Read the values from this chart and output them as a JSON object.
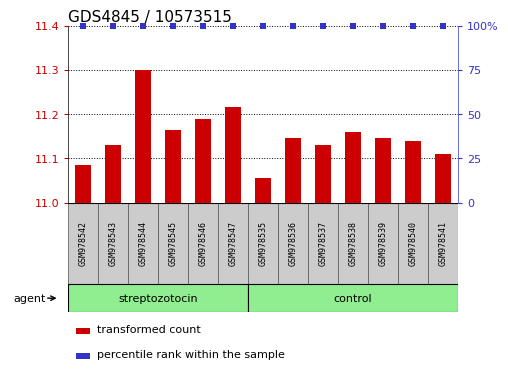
{
  "title": "GDS4845 / 10573515",
  "samples": [
    "GSM978542",
    "GSM978543",
    "GSM978544",
    "GSM978545",
    "GSM978546",
    "GSM978547",
    "GSM978535",
    "GSM978536",
    "GSM978537",
    "GSM978538",
    "GSM978539",
    "GSM978540",
    "GSM978541"
  ],
  "bar_values": [
    11.085,
    11.13,
    11.3,
    11.165,
    11.19,
    11.215,
    11.055,
    11.145,
    11.13,
    11.16,
    11.145,
    11.14,
    11.11
  ],
  "percentile_values": [
    100,
    100,
    100,
    100,
    100,
    100,
    100,
    100,
    100,
    100,
    100,
    100,
    100
  ],
  "bar_bottom": 11.0,
  "ylim_left": [
    11.0,
    11.4
  ],
  "ylim_right": [
    0,
    100
  ],
  "yticks_left": [
    11.0,
    11.1,
    11.2,
    11.3,
    11.4
  ],
  "yticks_right": [
    0,
    25,
    50,
    75,
    100
  ],
  "bar_color": "#cc0000",
  "dot_color": "#3333cc",
  "group1_label": "streptozotocin",
  "group2_label": "control",
  "group1_indices": [
    0,
    1,
    2,
    3,
    4,
    5
  ],
  "group2_indices": [
    6,
    7,
    8,
    9,
    10,
    11,
    12
  ],
  "group1_color": "#90ee90",
  "group2_color": "#90ee90",
  "agent_label": "agent",
  "legend_bar_label": "transformed count",
  "legend_dot_label": "percentile rank within the sample",
  "bar_width": 0.55,
  "background_color": "#ffffff",
  "tick_label_color_left": "#cc0000",
  "tick_label_color_right": "#3333cc",
  "title_fontsize": 11,
  "axis_fontsize": 8,
  "legend_fontsize": 8,
  "dot_marker": "s",
  "dot_size": 18
}
